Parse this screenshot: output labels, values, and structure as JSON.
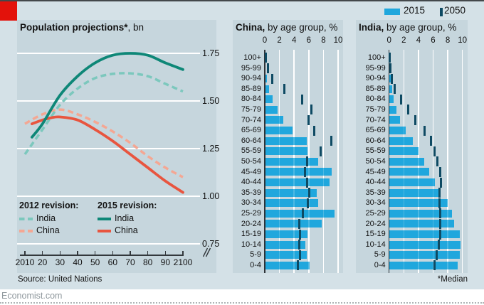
{
  "page": {
    "source": "Source: United Nations",
    "footnote": "*Median",
    "site": "Economist.com"
  },
  "top_legend": {
    "items": [
      {
        "label": "2015",
        "type": "bar-swatch"
      },
      {
        "label": "2050",
        "type": "tick-swatch"
      }
    ]
  },
  "colors": {
    "brand_red": "#e3120b",
    "page_bg": "#d4e1e7",
    "panel_bg": "#c6d6dd",
    "bar_2015": "#20a7dd",
    "tick_2050": "#0e4a63",
    "india_2015": "#0e8777",
    "india_2012": "#7cc8bd",
    "china_2015": "#e8553f",
    "china_2012": "#f4a793",
    "text": "#121212"
  },
  "chart_data": [
    {
      "type": "line",
      "title": {
        "bold": "Population projections*",
        "rest": ", bn"
      },
      "x_ticks": [
        {
          "label": "2010",
          "year": 2010
        },
        {
          "label": "20",
          "year": 2020
        },
        {
          "label": "30",
          "year": 2030
        },
        {
          "label": "40",
          "year": 2040
        },
        {
          "label": "50",
          "year": 2050
        },
        {
          "label": "60",
          "year": 2060
        },
        {
          "label": "70",
          "year": 2070
        },
        {
          "label": "80",
          "year": 2080
        },
        {
          "label": "90",
          "year": 2090
        },
        {
          "label": "2100",
          "year": 2100
        }
      ],
      "y_ticks": [
        {
          "label": "1.75",
          "value": 1.75
        },
        {
          "label": "1.50",
          "value": 1.5
        },
        {
          "label": "1.25",
          "value": 1.25
        },
        {
          "label": "1.00",
          "value": 1.0
        },
        {
          "label": "0.75",
          "value": 0.75
        }
      ],
      "ylim": [
        0.75,
        1.75
      ],
      "xlim": [
        2010,
        2100
      ],
      "axis_break": true,
      "grid": true,
      "legend": [
        {
          "title": "2012 revision:",
          "items": [
            {
              "label": "India",
              "color_key": "india_2012",
              "dashed": true
            },
            {
              "label": "China",
              "color_key": "china_2012",
              "dashed": true
            }
          ]
        },
        {
          "title": "2015 revision:",
          "items": [
            {
              "label": "India",
              "color_key": "india_2015",
              "dashed": false
            },
            {
              "label": "China",
              "color_key": "china_2015",
              "dashed": false
            }
          ]
        }
      ],
      "series": [
        {
          "name": "China (2012 revision)",
          "color_key": "china_2012",
          "dashed": true,
          "points": [
            [
              2010,
              1.38
            ],
            [
              2020,
              1.43
            ],
            [
              2030,
              1.455
            ],
            [
              2040,
              1.43
            ],
            [
              2050,
              1.39
            ],
            [
              2060,
              1.34
            ],
            [
              2070,
              1.28
            ],
            [
              2080,
              1.21
            ],
            [
              2090,
              1.15
            ],
            [
              2100,
              1.1
            ]
          ]
        },
        {
          "name": "India (2012 revision)",
          "color_key": "india_2012",
          "dashed": true,
          "points": [
            [
              2010,
              1.22
            ],
            [
              2020,
              1.35
            ],
            [
              2030,
              1.48
            ],
            [
              2040,
              1.565
            ],
            [
              2050,
              1.62
            ],
            [
              2060,
              1.642
            ],
            [
              2070,
              1.645
            ],
            [
              2080,
              1.63
            ],
            [
              2090,
              1.59
            ],
            [
              2100,
              1.55
            ]
          ]
        },
        {
          "name": "China (2015 revision)",
          "color_key": "china_2015",
          "dashed": false,
          "points": [
            [
              2014,
              1.38
            ],
            [
              2020,
              1.4
            ],
            [
              2025,
              1.412
            ],
            [
              2030,
              1.416
            ],
            [
              2040,
              1.4
            ],
            [
              2050,
              1.35
            ],
            [
              2060,
              1.29
            ],
            [
              2070,
              1.22
            ],
            [
              2080,
              1.15
            ],
            [
              2090,
              1.08
            ],
            [
              2100,
              1.02
            ]
          ]
        },
        {
          "name": "India (2015 revision)",
          "color_key": "india_2015",
          "dashed": false,
          "points": [
            [
              2014,
              1.31
            ],
            [
              2020,
              1.38
            ],
            [
              2030,
              1.53
            ],
            [
              2040,
              1.63
            ],
            [
              2050,
              1.7
            ],
            [
              2060,
              1.74
            ],
            [
              2070,
              1.75
            ],
            [
              2080,
              1.74
            ],
            [
              2090,
              1.7
            ],
            [
              2100,
              1.665
            ]
          ]
        }
      ]
    },
    {
      "type": "bar-horizontal",
      "title": {
        "bold": "China,",
        "rest": " by age group, %"
      },
      "x_ticks": [
        0,
        2,
        4,
        6,
        8,
        10
      ],
      "xlim": [
        0,
        10
      ],
      "categories": [
        "100+",
        "95-99",
        "90-94",
        "85-89",
        "80-84",
        "75-79",
        "70-74",
        "65-69",
        "60-64",
        "55-59",
        "50-54",
        "45-49",
        "40-44",
        "35-39",
        "30-34",
        "25-29",
        "20-24",
        "15-19",
        "10-14",
        "5-9",
        "0-4"
      ],
      "series": [
        {
          "name": "2015",
          "values": [
            0.03,
            0.1,
            0.3,
            0.6,
            1.1,
            1.75,
            2.5,
            3.8,
            5.7,
            5.8,
            7.3,
            9.1,
            8.8,
            7.1,
            7.3,
            9.5,
            7.8,
            5.85,
            5.5,
            5.75,
            6.1
          ]
        },
        {
          "name": "2050",
          "values": [
            0.1,
            0.4,
            1.05,
            2.7,
            5.05,
            6.35,
            6.0,
            6.7,
            9.05,
            7.6,
            5.75,
            5.5,
            5.75,
            6.1,
            5.9,
            5.2,
            4.7,
            4.8,
            4.7,
            4.8,
            4.5
          ]
        }
      ]
    },
    {
      "type": "bar-horizontal",
      "title": {
        "bold": "India,",
        "rest": " by age group, %"
      },
      "x_ticks": [
        0,
        2,
        4,
        6,
        8,
        10
      ],
      "xlim": [
        0,
        10
      ],
      "categories": [
        "100+",
        "95-99",
        "90-94",
        "85-89",
        "80-84",
        "75-79",
        "70-74",
        "65-69",
        "60-64",
        "55-59",
        "50-54",
        "45-49",
        "40-44",
        "35-39",
        "30-34",
        "25-29",
        "20-24",
        "15-19",
        "10-14",
        "5-9",
        "0-4"
      ],
      "series": [
        {
          "name": "2015",
          "values": [
            0.03,
            0.1,
            0.3,
            0.4,
            0.6,
            1.0,
            1.5,
            2.3,
            3.2,
            4.0,
            4.8,
            5.45,
            6.2,
            6.85,
            7.95,
            8.55,
            8.9,
            9.6,
            9.7,
            9.65,
            9.35
          ]
        },
        {
          "name": "2050",
          "values": [
            0.06,
            0.15,
            0.35,
            0.8,
            1.6,
            2.6,
            3.6,
            4.8,
            5.7,
            6.2,
            6.6,
            6.95,
            7.1,
            6.9,
            6.9,
            6.95,
            7.0,
            6.95,
            6.8,
            6.5,
            6.2
          ]
        }
      ]
    }
  ]
}
